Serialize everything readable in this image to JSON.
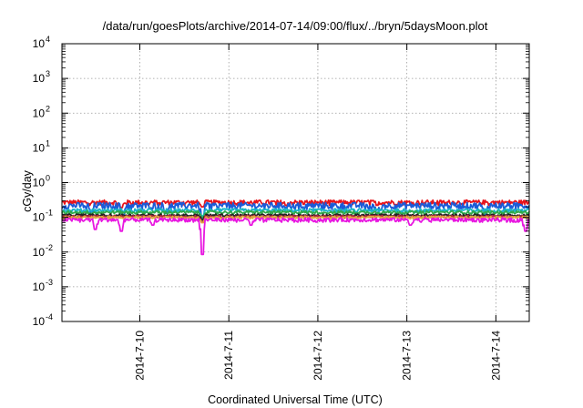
{
  "chart_data": {
    "type": "line",
    "title": "/data/run/goesPlots/archive/2014-07-14/09:00/flux/../bryn/5daysMoon.plot",
    "xlabel": "Coordinated Universal Time (UTC)",
    "ylabel": "cGy/day",
    "yscale": "log",
    "ylim": [
      0.0001,
      10000
    ],
    "xlim": [
      "2014-07-09 03:00",
      "2014-07-14 09:00"
    ],
    "grid": true,
    "legend": "none",
    "y_ticks": [
      {
        "value": 0.0001,
        "base": "10",
        "exp": "-4"
      },
      {
        "value": 0.001,
        "base": "10",
        "exp": "-3"
      },
      {
        "value": 0.01,
        "base": "10",
        "exp": "-2"
      },
      {
        "value": 0.1,
        "base": "10",
        "exp": "-1"
      },
      {
        "value": 1,
        "base": "10",
        "exp": "0"
      },
      {
        "value": 10,
        "base": "10",
        "exp": "1"
      },
      {
        "value": 100,
        "base": "10",
        "exp": "2"
      },
      {
        "value": 1000,
        "base": "10",
        "exp": "3"
      },
      {
        "value": 10000,
        "base": "10",
        "exp": "4"
      }
    ],
    "x_ticks": [
      {
        "value": "2014-07-10 00:00",
        "label": "2014-7-10"
      },
      {
        "value": "2014-07-11 00:00",
        "label": "2014-7-11"
      },
      {
        "value": "2014-07-12 00:00",
        "label": "2014-7-12"
      },
      {
        "value": "2014-07-13 00:00",
        "label": "2014-7-13"
      },
      {
        "value": "2014-07-14 00:00",
        "label": "2014-7-14"
      }
    ],
    "series": [
      {
        "color": "#e8141c",
        "level": 0.27,
        "noise": 0.2,
        "dips": [
          [
            "2014-07-09 19:00",
            0.19
          ],
          [
            "2014-07-10 16:48",
            0.2
          ]
        ]
      },
      {
        "color": "#1a5bd8",
        "level": 0.22,
        "noise": 0.26,
        "dips": [
          [
            "2014-07-09 11:00",
            0.13
          ],
          [
            "2014-07-09 19:24",
            0.11
          ],
          [
            "2014-07-10 07:00",
            0.13
          ],
          [
            "2014-07-10 16:48",
            0.09
          ],
          [
            "2014-07-12 16:00",
            0.13
          ],
          [
            "2014-07-13 21:00",
            0.12
          ]
        ]
      },
      {
        "color": "#19b5c8",
        "level": 0.16,
        "noise": 0.14,
        "dips": [
          [
            "2014-07-10 16:48",
            0.11
          ]
        ]
      },
      {
        "color": "#2faa4a",
        "level": 0.14,
        "noise": 0.12,
        "dips": [
          [
            "2014-07-10 16:48",
            0.1
          ]
        ]
      },
      {
        "color": "#222222",
        "level": 0.115,
        "noise": 0.1,
        "dips": [
          [
            "2014-07-10 16:48",
            0.085
          ]
        ]
      },
      {
        "color": "#b5283c",
        "level": 0.105,
        "noise": 0.1,
        "dips": [
          [
            "2014-07-10 16:48",
            0.075
          ]
        ]
      },
      {
        "color": "#e0a640",
        "level": 0.1,
        "noise": 0.1,
        "dips": [
          [
            "2014-07-10 16:48",
            0.07
          ]
        ]
      },
      {
        "color": "#e817e0",
        "level": 0.085,
        "noise": 0.16,
        "dips": [
          [
            "2014-07-09 12:00",
            0.045
          ],
          [
            "2014-07-09 19:00",
            0.04
          ],
          [
            "2014-07-10 03:30",
            0.06
          ],
          [
            "2014-07-10 16:48",
            0.0085
          ],
          [
            "2014-07-11 06:00",
            0.06
          ],
          [
            "2014-07-13 01:00",
            0.06
          ],
          [
            "2014-07-14 08:00",
            0.04
          ]
        ]
      }
    ]
  }
}
